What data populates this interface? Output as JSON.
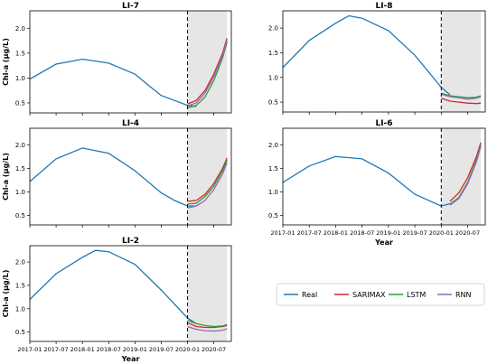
{
  "chart_data": {
    "type": "line",
    "x_ticks": [
      "2017-01",
      "2017-07",
      "2018-01",
      "2018-07",
      "2019-01",
      "2019-07",
      "2020-01",
      "2020-07"
    ],
    "x_range": [
      "2017-01",
      "2020-11"
    ],
    "forecast_start": "2020-01",
    "y_ticks": [
      "0.5",
      "1.0",
      "1.5",
      "2.0"
    ],
    "y_range": [
      0.3,
      2.35
    ],
    "xlabel": "Year",
    "ylabel": "Chl-a (μg/L)",
    "legend": {
      "placement": "bottom-right",
      "entries": [
        {
          "name": "Real",
          "color": "#1f77b4"
        },
        {
          "name": "SARIMAX",
          "color": "#d62728"
        },
        {
          "name": "LSTM",
          "color": "#2ca02c"
        },
        {
          "name": "RNN",
          "color": "#9467bd"
        }
      ]
    },
    "panels": [
      {
        "title": "LI-7",
        "show_ylabel": true,
        "show_xlabel": false,
        "show_xticklabels": false,
        "real": {
          "x": [
            "2017-01",
            "2017-07",
            "2018-01",
            "2018-07",
            "2019-01",
            "2019-04",
            "2019-07",
            "2019-10",
            "2020-01",
            "2020-03"
          ],
          "y": [
            0.98,
            1.28,
            1.38,
            1.3,
            1.08,
            0.86,
            0.65,
            0.55,
            0.45,
            0.43
          ]
        },
        "forecasts": {
          "SARIMAX": {
            "x": [
              "2020-01",
              "2020-03",
              "2020-05",
              "2020-07",
              "2020-09",
              "2020-10"
            ],
            "y": [
              0.48,
              0.55,
              0.75,
              1.08,
              1.5,
              1.8
            ]
          },
          "LSTM": {
            "x": [
              "2020-01",
              "2020-03",
              "2020-05",
              "2020-07",
              "2020-09",
              "2020-10"
            ],
            "y": [
              0.4,
              0.45,
              0.62,
              0.95,
              1.4,
              1.72
            ]
          },
          "RNN": {
            "x": [
              "2020-01",
              "2020-03",
              "2020-05",
              "2020-07",
              "2020-09",
              "2020-10"
            ],
            "y": [
              0.44,
              0.5,
              0.7,
              1.03,
              1.46,
              1.76
            ]
          }
        }
      },
      {
        "title": "LI-8",
        "show_ylabel": false,
        "show_xlabel": false,
        "show_xticklabels": false,
        "real": {
          "x": [
            "2017-01",
            "2017-07",
            "2018-01",
            "2018-04",
            "2018-07",
            "2019-01",
            "2019-07",
            "2020-01",
            "2020-03"
          ],
          "y": [
            1.2,
            1.75,
            2.1,
            2.25,
            2.2,
            1.95,
            1.45,
            0.8,
            0.65
          ]
        },
        "forecasts": {
          "SARIMAX": {
            "x": [
              "2020-01",
              "2020-03",
              "2020-05",
              "2020-07",
              "2020-09",
              "2020-10"
            ],
            "y": [
              0.58,
              0.52,
              0.5,
              0.48,
              0.47,
              0.48
            ]
          },
          "LSTM": {
            "x": [
              "2020-01",
              "2020-03",
              "2020-05",
              "2020-07",
              "2020-09",
              "2020-10"
            ],
            "y": [
              0.68,
              0.63,
              0.61,
              0.59,
              0.6,
              0.63
            ]
          },
          "RNN": {
            "x": [
              "2020-01",
              "2020-03",
              "2020-05",
              "2020-07",
              "2020-09",
              "2020-10"
            ],
            "y": [
              0.66,
              0.61,
              0.59,
              0.56,
              0.58,
              0.61
            ]
          }
        }
      },
      {
        "title": "LI-4",
        "show_ylabel": true,
        "show_xlabel": false,
        "show_xticklabels": false,
        "real": {
          "x": [
            "2017-01",
            "2017-07",
            "2018-01",
            "2018-07",
            "2019-01",
            "2019-07",
            "2019-10",
            "2020-01",
            "2020-03"
          ],
          "y": [
            1.22,
            1.7,
            1.93,
            1.82,
            1.45,
            0.98,
            0.82,
            0.7,
            0.7
          ]
        },
        "forecasts": {
          "SARIMAX": {
            "x": [
              "2020-01",
              "2020-03",
              "2020-05",
              "2020-07",
              "2020-09",
              "2020-10"
            ],
            "y": [
              0.8,
              0.82,
              0.95,
              1.18,
              1.5,
              1.72
            ]
          },
          "LSTM": {
            "x": [
              "2020-01",
              "2020-03",
              "2020-05",
              "2020-07",
              "2020-09",
              "2020-10"
            ],
            "y": [
              0.74,
              0.76,
              0.9,
              1.12,
              1.45,
              1.68
            ]
          },
          "RNN": {
            "x": [
              "2020-01",
              "2020-03",
              "2020-05",
              "2020-07",
              "2020-09",
              "2020-10"
            ],
            "y": [
              0.66,
              0.7,
              0.82,
              1.05,
              1.38,
              1.62
            ]
          }
        }
      },
      {
        "title": "LI-6",
        "show_ylabel": false,
        "show_xlabel": true,
        "show_xticklabels": true,
        "real": {
          "x": [
            "2017-01",
            "2017-07",
            "2018-01",
            "2018-07",
            "2019-01",
            "2019-07",
            "2020-01",
            "2020-03"
          ],
          "y": [
            1.2,
            1.55,
            1.75,
            1.7,
            1.4,
            0.95,
            0.7,
            0.75
          ]
        },
        "forecasts": {
          "SARIMAX": {
            "x": [
              "2020-03",
              "2020-05",
              "2020-07",
              "2020-09",
              "2020-10"
            ],
            "y": [
              0.8,
              0.98,
              1.3,
              1.75,
              2.05
            ]
          },
          "LSTM": {
            "x": [
              "2020-03",
              "2020-05",
              "2020-07",
              "2020-09",
              "2020-10"
            ],
            "y": [
              0.74,
              0.88,
              1.2,
              1.68,
              2.0
            ]
          },
          "RNN": {
            "x": [
              "2020-03",
              "2020-05",
              "2020-07",
              "2020-09",
              "2020-10"
            ],
            "y": [
              0.72,
              0.86,
              1.17,
              1.64,
              1.97
            ]
          }
        }
      },
      {
        "title": "LI-2",
        "show_ylabel": true,
        "show_xlabel": true,
        "show_xticklabels": true,
        "real": {
          "x": [
            "2017-01",
            "2017-07",
            "2018-01",
            "2018-04",
            "2018-07",
            "2019-01",
            "2019-07",
            "2020-01",
            "2020-03"
          ],
          "y": [
            1.2,
            1.75,
            2.1,
            2.25,
            2.22,
            1.95,
            1.4,
            0.8,
            0.68
          ]
        },
        "forecasts": {
          "SARIMAX": {
            "x": [
              "2020-01",
              "2020-03",
              "2020-05",
              "2020-07",
              "2020-09",
              "2020-10"
            ],
            "y": [
              0.7,
              0.62,
              0.6,
              0.6,
              0.62,
              0.64
            ]
          },
          "LSTM": {
            "x": [
              "2020-01",
              "2020-03",
              "2020-05",
              "2020-07",
              "2020-09",
              "2020-10"
            ],
            "y": [
              0.75,
              0.68,
              0.64,
              0.62,
              0.63,
              0.66
            ]
          },
          "RNN": {
            "x": [
              "2020-01",
              "2020-03",
              "2020-05",
              "2020-07",
              "2020-09",
              "2020-10"
            ],
            "y": [
              0.62,
              0.56,
              0.53,
              0.52,
              0.54,
              0.57
            ]
          }
        }
      }
    ]
  }
}
